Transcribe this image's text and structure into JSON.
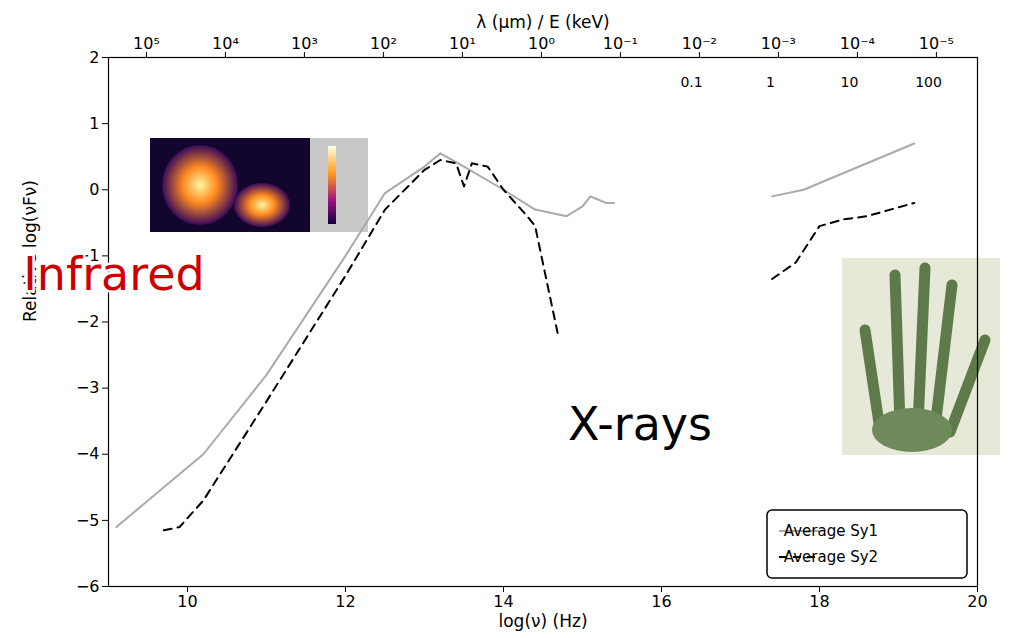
{
  "chart_data": {
    "type": "line",
    "x_label": "log(ν) (Hz)",
    "y_label": "Relative log(νFν)",
    "top_axis_label": "λ (µm) / E (keV)",
    "xlim": [
      9,
      20
    ],
    "xticks": [
      10,
      12,
      14,
      16,
      18,
      20
    ],
    "ylim": [
      -6,
      2
    ],
    "yticks": [
      -6,
      -5,
      -4,
      -3,
      -2,
      -1,
      0,
      1,
      2
    ],
    "top_ticks": [
      {
        "value": 9.48,
        "label": "10⁵"
      },
      {
        "value": 10.48,
        "label": "10⁴"
      },
      {
        "value": 11.48,
        "label": "10³"
      },
      {
        "value": 12.48,
        "label": "10²"
      },
      {
        "value": 13.48,
        "label": "10¹"
      },
      {
        "value": 14.48,
        "label": "10⁰"
      },
      {
        "value": 15.48,
        "label": "10⁻¹"
      },
      {
        "value": 16.48,
        "label": "10⁻²"
      },
      {
        "value": 17.48,
        "label": "10⁻³"
      },
      {
        "value": 18.48,
        "label": "10⁻⁴"
      },
      {
        "value": 19.48,
        "label": "10⁻⁵"
      }
    ],
    "energy_ticks": [
      {
        "value": 16.38,
        "label": "0.1"
      },
      {
        "value": 17.38,
        "label": "1"
      },
      {
        "value": 18.38,
        "label": "10"
      },
      {
        "value": 19.38,
        "label": "100"
      }
    ],
    "series": [
      {
        "name": "Average Sy1",
        "color": "#aaaaaa",
        "line_style": "solid",
        "x": [
          9.1,
          9.5,
          10.2,
          11,
          12,
          12.5,
          13,
          13.2,
          13.5,
          14,
          14.4,
          14.8,
          15,
          15.1,
          15.3,
          15.4,
          16,
          17.4,
          17.8,
          18.2,
          19.2
        ],
        "values": [
          -5.1,
          -4.7,
          -4.0,
          -2.8,
          -1.0,
          -0.05,
          0.35,
          0.55,
          0.35,
          0,
          -0.3,
          -0.4,
          -0.25,
          -0.1,
          -0.2,
          -0.2,
          null,
          -0.1,
          0,
          0.2,
          0.7
        ]
      },
      {
        "name": "Average Sy2",
        "color": "#000000",
        "line_style": "dashed",
        "x": [
          9.7,
          9.9,
          10.2,
          11,
          12,
          12.5,
          13,
          13.2,
          13.4,
          13.5,
          13.6,
          13.8,
          14,
          14.3,
          14.4,
          14.7,
          16,
          17.4,
          17.7,
          18,
          18.3,
          18.6,
          19.2
        ],
        "values": [
          -5.15,
          -5.1,
          -4.7,
          -3.2,
          -1.3,
          -0.3,
          0.3,
          0.45,
          0.4,
          0.05,
          0.4,
          0.35,
          0,
          -0.4,
          -0.55,
          -2.25,
          null,
          -1.35,
          -1.1,
          -0.55,
          -0.45,
          -0.4,
          -0.2
        ]
      }
    ],
    "annotations": [
      {
        "text": "Infrared",
        "color": "#cc0000"
      },
      {
        "text": "X-rays",
        "color": "#000000"
      }
    ],
    "legend": "lower right",
    "grid": false
  }
}
